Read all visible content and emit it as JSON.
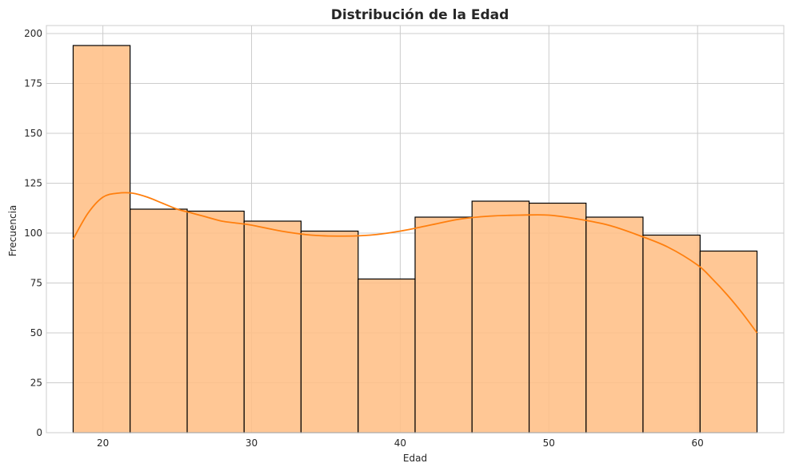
{
  "chart_data": {
    "type": "bar",
    "title": "Distribución de la Edad",
    "xlabel": "Edad",
    "ylabel": "Frecuencia",
    "bin_edges": [
      18,
      21.83,
      25.67,
      29.5,
      33.33,
      37.17,
      41,
      44.83,
      48.67,
      52.5,
      56.33,
      60.17,
      64
    ],
    "values": [
      194,
      112,
      111,
      106,
      101,
      77,
      108,
      116,
      115,
      108,
      99,
      91
    ],
    "kde": {
      "x": [
        18,
        19,
        20,
        21,
        22,
        23,
        24,
        25,
        26,
        27,
        28,
        29,
        30,
        32,
        34,
        36,
        38,
        40,
        42,
        44,
        46,
        48,
        50,
        52,
        54,
        56,
        58,
        60,
        61,
        62,
        63,
        64
      ],
      "y": [
        97,
        110,
        118,
        120,
        120,
        118,
        115,
        112,
        110,
        108,
        106,
        105,
        104,
        101,
        99,
        98.5,
        99,
        101,
        104,
        107,
        108.5,
        109,
        109,
        107,
        104,
        99,
        93,
        84,
        77,
        69,
        60,
        50
      ]
    },
    "xlim": [
      16.2,
      65.8
    ],
    "ylim": [
      0,
      204
    ],
    "xticks": [
      20,
      30,
      40,
      50,
      60
    ],
    "yticks": [
      0,
      25,
      50,
      75,
      100,
      125,
      150,
      175,
      200
    ],
    "grid": true,
    "colors": {
      "bar_fill": "#ffbf86",
      "bar_edge": "#000000",
      "kde_line": "#ff7f0e",
      "grid": "#cccccc"
    }
  }
}
